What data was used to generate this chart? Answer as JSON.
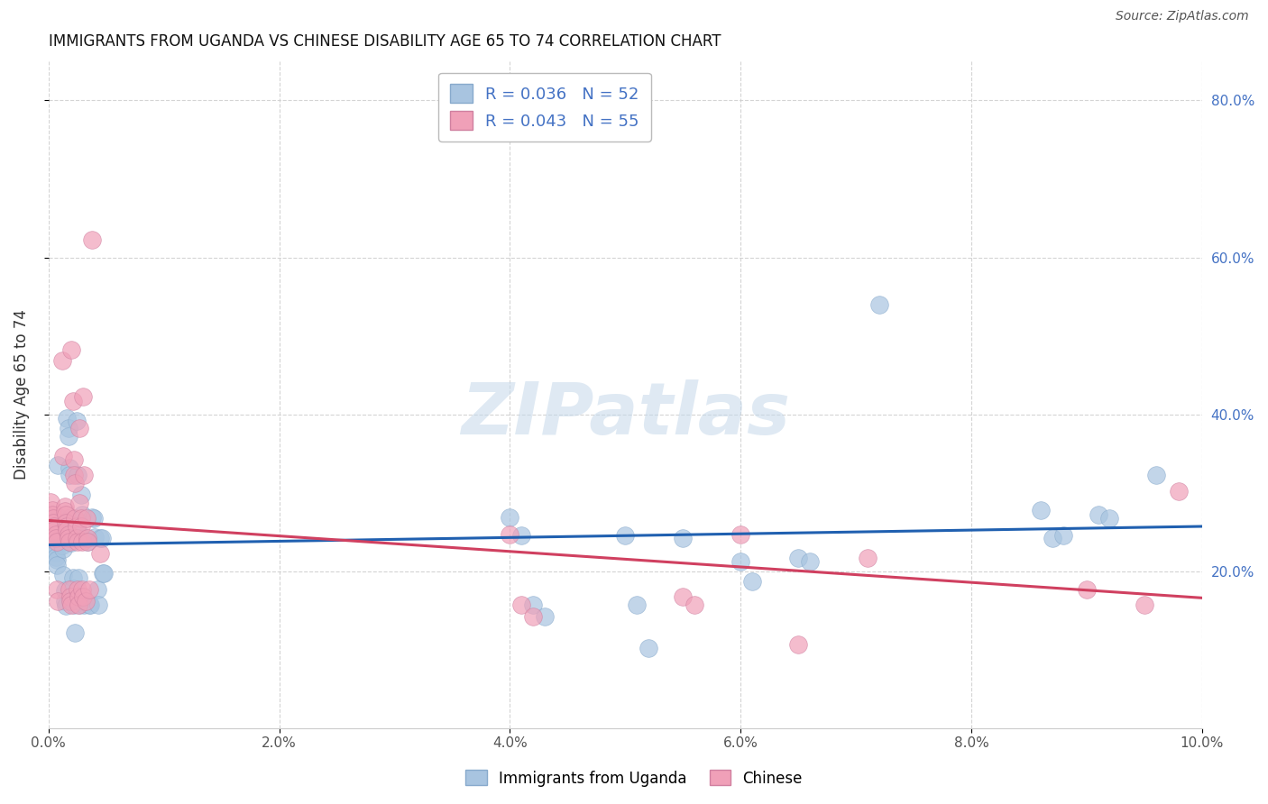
{
  "title": "IMMIGRANTS FROM UGANDA VS CHINESE DISABILITY AGE 65 TO 74 CORRELATION CHART",
  "source": "Source: ZipAtlas.com",
  "ylabel": "Disability Age 65 to 74",
  "xlim": [
    0.0,
    0.1
  ],
  "ylim": [
    0.0,
    0.85
  ],
  "xtick_vals": [
    0.0,
    0.02,
    0.04,
    0.06,
    0.08,
    0.1
  ],
  "xtick_labels": [
    "0.0%",
    "2.0%",
    "4.0%",
    "6.0%",
    "8.0%",
    "10.0%"
  ],
  "ytick_right_labels": [
    "20.0%",
    "40.0%",
    "60.0%",
    "80.0%"
  ],
  "ytick_right_vals": [
    0.2,
    0.4,
    0.6,
    0.8
  ],
  "legend_r": [
    0.036,
    0.043
  ],
  "legend_n": [
    52,
    55
  ],
  "blue_color": "#a8c4e0",
  "pink_color": "#f0a0b8",
  "blue_line_color": "#2060b0",
  "pink_line_color": "#d04060",
  "blue_dots": [
    [
      0.0002,
      0.27
    ],
    [
      0.0003,
      0.26
    ],
    [
      0.0003,
      0.25
    ],
    [
      0.0004,
      0.245
    ],
    [
      0.0004,
      0.24
    ],
    [
      0.0005,
      0.235
    ],
    [
      0.0005,
      0.228
    ],
    [
      0.0006,
      0.224
    ],
    [
      0.0006,
      0.218
    ],
    [
      0.0007,
      0.214
    ],
    [
      0.0007,
      0.208
    ],
    [
      0.0008,
      0.335
    ],
    [
      0.0009,
      0.268
    ],
    [
      0.0009,
      0.262
    ],
    [
      0.001,
      0.257
    ],
    [
      0.001,
      0.252
    ],
    [
      0.0011,
      0.248
    ],
    [
      0.0011,
      0.243
    ],
    [
      0.0012,
      0.238
    ],
    [
      0.0012,
      0.233
    ],
    [
      0.0013,
      0.228
    ],
    [
      0.0013,
      0.195
    ],
    [
      0.0014,
      0.176
    ],
    [
      0.0014,
      0.162
    ],
    [
      0.0015,
      0.156
    ],
    [
      0.0016,
      0.395
    ],
    [
      0.0017,
      0.382
    ],
    [
      0.0017,
      0.372
    ],
    [
      0.0018,
      0.332
    ],
    [
      0.0018,
      0.322
    ],
    [
      0.0019,
      0.268
    ],
    [
      0.002,
      0.242
    ],
    [
      0.002,
      0.236
    ],
    [
      0.0021,
      0.192
    ],
    [
      0.0021,
      0.178
    ],
    [
      0.0022,
      0.163
    ],
    [
      0.0022,
      0.157
    ],
    [
      0.0023,
      0.122
    ],
    [
      0.0024,
      0.392
    ],
    [
      0.0025,
      0.322
    ],
    [
      0.0025,
      0.252
    ],
    [
      0.0026,
      0.242
    ],
    [
      0.0026,
      0.192
    ],
    [
      0.0027,
      0.163
    ],
    [
      0.0027,
      0.157
    ],
    [
      0.0028,
      0.297
    ],
    [
      0.0029,
      0.272
    ],
    [
      0.003,
      0.242
    ],
    [
      0.0031,
      0.157
    ],
    [
      0.0033,
      0.242
    ],
    [
      0.0034,
      0.237
    ],
    [
      0.0035,
      0.157
    ],
    [
      0.0036,
      0.157
    ],
    [
      0.0038,
      0.268
    ],
    [
      0.0039,
      0.267
    ],
    [
      0.004,
      0.243
    ],
    [
      0.0042,
      0.177
    ],
    [
      0.0043,
      0.157
    ],
    [
      0.0045,
      0.242
    ],
    [
      0.0046,
      0.242
    ],
    [
      0.0047,
      0.197
    ],
    [
      0.0048,
      0.197
    ],
    [
      0.04,
      0.268
    ],
    [
      0.041,
      0.245
    ],
    [
      0.042,
      0.157
    ],
    [
      0.043,
      0.142
    ],
    [
      0.05,
      0.245
    ],
    [
      0.051,
      0.157
    ],
    [
      0.052,
      0.102
    ],
    [
      0.055,
      0.242
    ],
    [
      0.06,
      0.212
    ],
    [
      0.061,
      0.187
    ],
    [
      0.065,
      0.217
    ],
    [
      0.066,
      0.212
    ],
    [
      0.072,
      0.54
    ],
    [
      0.086,
      0.278
    ],
    [
      0.087,
      0.242
    ],
    [
      0.088,
      0.246
    ],
    [
      0.091,
      0.272
    ],
    [
      0.092,
      0.267
    ],
    [
      0.096,
      0.322
    ]
  ],
  "pink_dots": [
    [
      0.0002,
      0.288
    ],
    [
      0.0003,
      0.278
    ],
    [
      0.0003,
      0.272
    ],
    [
      0.0004,
      0.267
    ],
    [
      0.0004,
      0.262
    ],
    [
      0.0005,
      0.257
    ],
    [
      0.0005,
      0.252
    ],
    [
      0.0006,
      0.247
    ],
    [
      0.0006,
      0.242
    ],
    [
      0.0007,
      0.237
    ],
    [
      0.0007,
      0.177
    ],
    [
      0.0008,
      0.162
    ],
    [
      0.0012,
      0.468
    ],
    [
      0.0013,
      0.347
    ],
    [
      0.0014,
      0.282
    ],
    [
      0.0014,
      0.277
    ],
    [
      0.0015,
      0.272
    ],
    [
      0.0015,
      0.262
    ],
    [
      0.0016,
      0.257
    ],
    [
      0.0016,
      0.252
    ],
    [
      0.0017,
      0.247
    ],
    [
      0.0017,
      0.242
    ],
    [
      0.0018,
      0.237
    ],
    [
      0.0018,
      0.177
    ],
    [
      0.0019,
      0.167
    ],
    [
      0.0019,
      0.162
    ],
    [
      0.002,
      0.157
    ],
    [
      0.002,
      0.482
    ],
    [
      0.0021,
      0.417
    ],
    [
      0.0022,
      0.342
    ],
    [
      0.0022,
      0.322
    ],
    [
      0.0023,
      0.312
    ],
    [
      0.0023,
      0.267
    ],
    [
      0.0024,
      0.257
    ],
    [
      0.0024,
      0.242
    ],
    [
      0.0025,
      0.237
    ],
    [
      0.0025,
      0.177
    ],
    [
      0.0026,
      0.167
    ],
    [
      0.0026,
      0.157
    ],
    [
      0.0027,
      0.382
    ],
    [
      0.0027,
      0.287
    ],
    [
      0.0028,
      0.267
    ],
    [
      0.0028,
      0.257
    ],
    [
      0.0029,
      0.237
    ],
    [
      0.0029,
      0.177
    ],
    [
      0.003,
      0.167
    ],
    [
      0.003,
      0.422
    ],
    [
      0.0031,
      0.322
    ],
    [
      0.0032,
      0.162
    ],
    [
      0.0033,
      0.267
    ],
    [
      0.0034,
      0.242
    ],
    [
      0.0034,
      0.237
    ],
    [
      0.0035,
      0.177
    ],
    [
      0.0038,
      0.622
    ],
    [
      0.0045,
      0.222
    ],
    [
      0.04,
      0.247
    ],
    [
      0.041,
      0.157
    ],
    [
      0.042,
      0.142
    ],
    [
      0.055,
      0.167
    ],
    [
      0.056,
      0.157
    ],
    [
      0.06,
      0.247
    ],
    [
      0.065,
      0.107
    ],
    [
      0.071,
      0.217
    ],
    [
      0.09,
      0.177
    ],
    [
      0.095,
      0.157
    ],
    [
      0.098,
      0.302
    ]
  ],
  "watermark": "ZIPatlas",
  "background_color": "#ffffff",
  "grid_color": "#d0d0d0"
}
